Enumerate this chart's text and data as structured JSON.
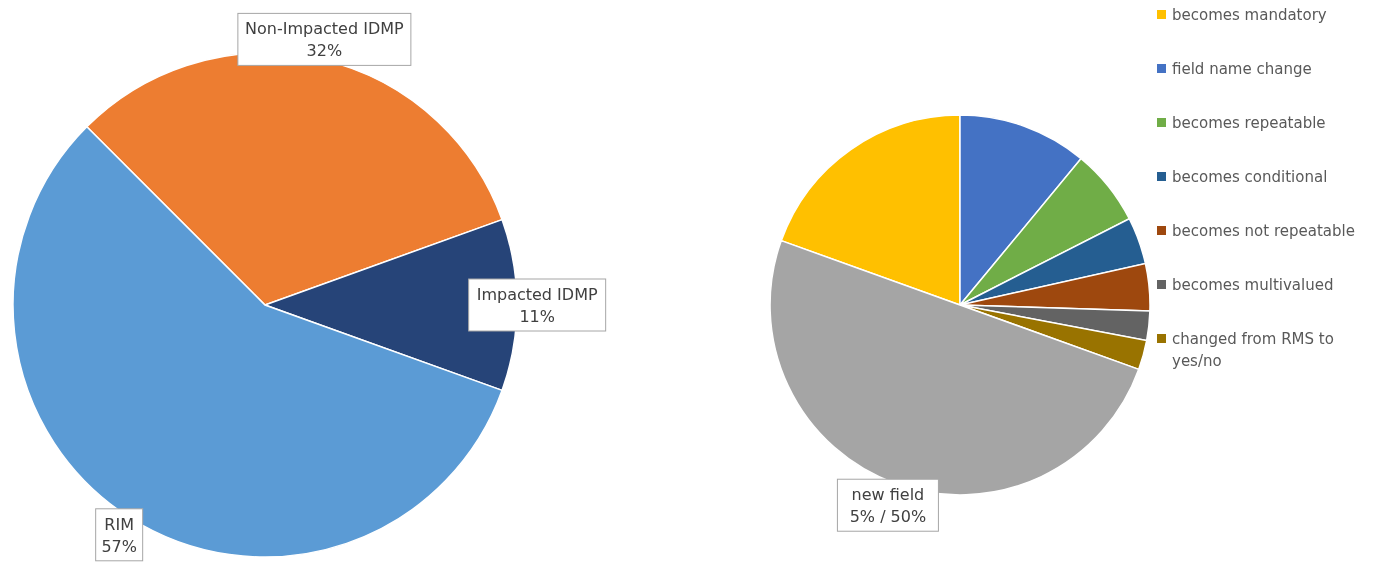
{
  "chart_data": [
    {
      "type": "pie",
      "categories": [
        "Non-Impacted IDMP",
        "Impacted IDMP",
        "RIM"
      ],
      "values": [
        32,
        11,
        57
      ],
      "colors": [
        "#ed7d31",
        "#264478",
        "#5b9bd5"
      ],
      "value_labels": [
        "32%",
        "11%",
        "57%"
      ],
      "legend": false
    },
    {
      "type": "pie",
      "categories": [
        "becomes mandatory",
        "field name change",
        "becomes repeatable",
        "becomes conditional",
        "becomes not repeatable",
        "becomes multivalued",
        "changed from RMS to yes/no",
        "new field"
      ],
      "values": [
        19.5,
        11,
        6.5,
        4,
        4,
        2.5,
        2.5,
        50
      ],
      "colors": [
        "#ffc000",
        "#4472c4",
        "#70ad47",
        "#255e91",
        "#9e480e",
        "#636363",
        "#997300",
        "#a5a5a5"
      ],
      "value_labels": [
        null,
        null,
        null,
        null,
        null,
        null,
        null,
        "5% / 50%"
      ],
      "legend": "right"
    }
  ]
}
